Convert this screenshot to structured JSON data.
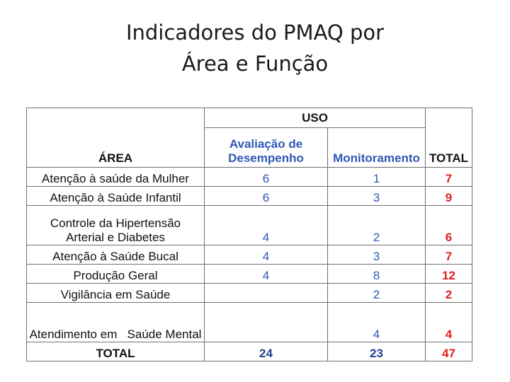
{
  "title": {
    "line1": "Indicadores do PMAQ por",
    "line2": "Área e Função"
  },
  "table": {
    "header": {
      "area": "ÁREA",
      "uso": "USO",
      "avaliacao": "Avaliação de Desempenho",
      "monitoramento": "Monitoramento",
      "total": "TOTAL"
    },
    "rows": [
      {
        "area": "Atenção à saúde da Mulher",
        "avaliacao": "6",
        "monitoramento": "1",
        "total": "7"
      },
      {
        "area": "Atenção à Saúde Infantil",
        "avaliacao": "6",
        "monitoramento": "3",
        "total": "9"
      },
      {
        "area": "Controle da Hipertensão Arterial e Diabetes",
        "avaliacao": "4",
        "monitoramento": "2",
        "total": "6"
      },
      {
        "area": "Atenção à Saúde Bucal",
        "avaliacao": "4",
        "monitoramento": "3",
        "total": "7"
      },
      {
        "area": "Produção Geral",
        "avaliacao": "4",
        "monitoramento": "8",
        "total": "12"
      },
      {
        "area": "Vigilância em Saúde",
        "avaliacao": "",
        "monitoramento": "2",
        "total": "2"
      },
      {
        "area": "Atendimento em   Saúde Mental",
        "avaliacao": "",
        "monitoramento": "4",
        "total": "4"
      }
    ],
    "totals": {
      "label": "TOTAL",
      "avaliacao": "24",
      "monitoramento": "23",
      "total": "47"
    }
  }
}
